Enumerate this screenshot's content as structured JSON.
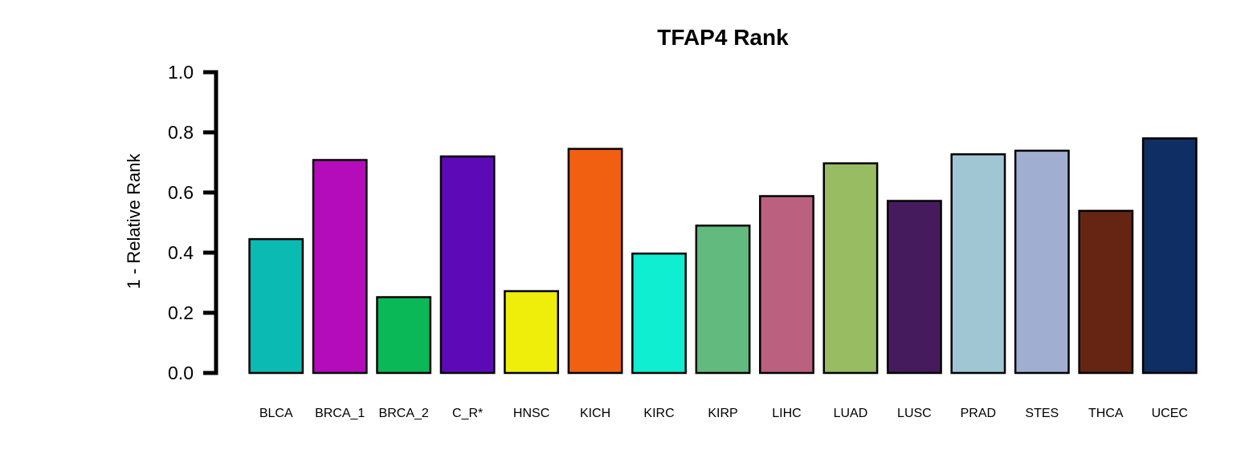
{
  "chart_data": {
    "type": "bar",
    "title": "TFAP4 Rank",
    "xlabel": "",
    "ylabel": "1 - Relative Rank",
    "ylim": [
      0,
      1.0
    ],
    "yticks": [
      "0.0",
      "0.2",
      "0.4",
      "0.6",
      "0.8",
      "1.0"
    ],
    "grid": false,
    "legend": "none",
    "categories": [
      "BLCA",
      "BRCA_1",
      "BRCA_2",
      "C_R*",
      "HNSC",
      "KICH",
      "KIRC",
      "KIRP",
      "LIHC",
      "LUAD",
      "LUSC",
      "PRAD",
      "STES",
      "THCA",
      "UCEC"
    ],
    "values": [
      0.445,
      0.708,
      0.252,
      0.72,
      0.272,
      0.745,
      0.397,
      0.49,
      0.588,
      0.697,
      0.572,
      0.727,
      0.739,
      0.539,
      0.78
    ],
    "colors": [
      "#0BBBB3",
      "#B40CBB",
      "#0AB857",
      "#5D09B8",
      "#EEEE0A",
      "#F06010",
      "#0FEED0",
      "#62BA7F",
      "#BC6080",
      "#98BC61",
      "#461B5E",
      "#A0C5D3",
      "#A0AED1",
      "#652512",
      "#0F2E63"
    ]
  }
}
